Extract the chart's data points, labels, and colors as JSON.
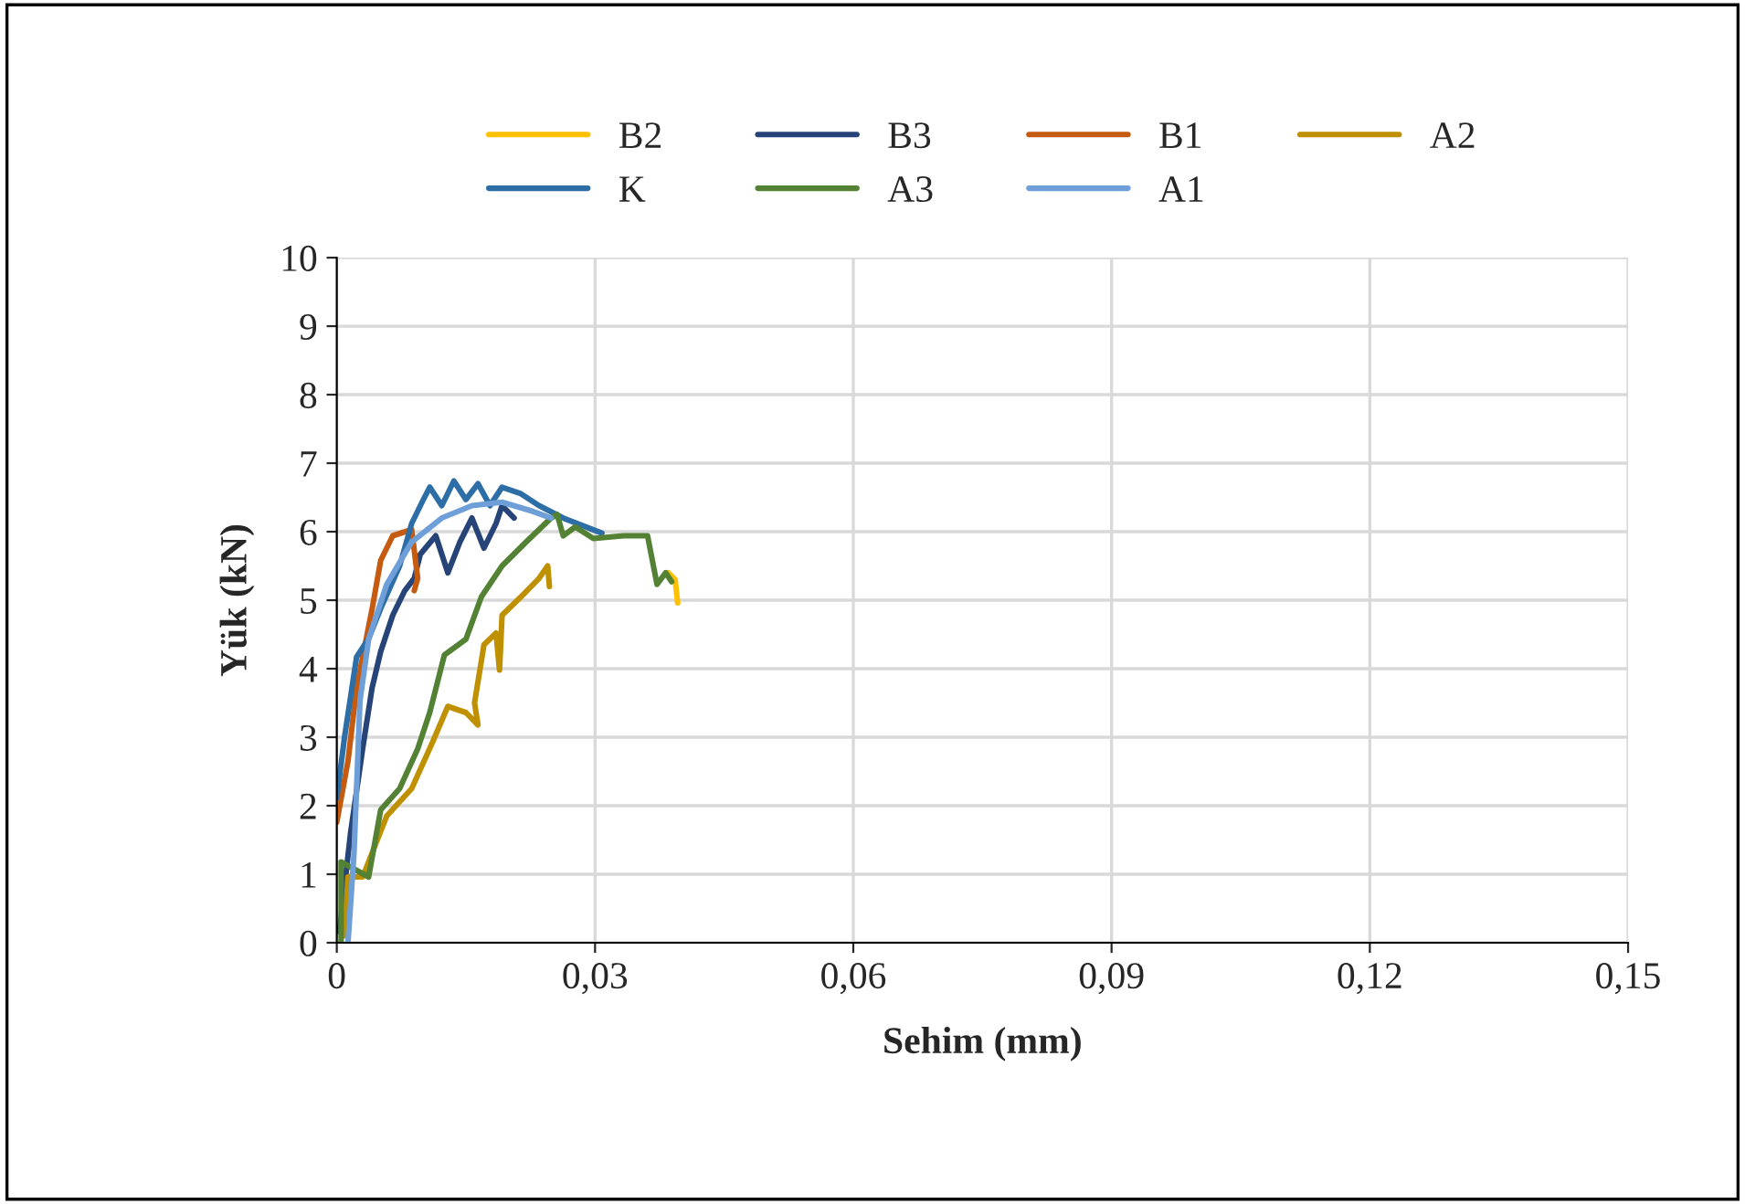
{
  "chart_data": {
    "type": "line",
    "xlabel": "Sehim (mm)",
    "ylabel": "Yük (kN)",
    "xlim": [
      0,
      0.15
    ],
    "ylim": [
      0,
      10
    ],
    "xticks": [
      0,
      {
        "value": 0.03,
        "label": "0,03"
      },
      {
        "value": 0.06,
        "label": "0,06"
      },
      {
        "value": 0.09,
        "label": "0,09"
      },
      {
        "value": 0.12,
        "label": "0,12"
      },
      {
        "value": 0.15,
        "label": "0,15"
      }
    ],
    "yticks": [
      0,
      1,
      2,
      3,
      4,
      5,
      6,
      7,
      8,
      9,
      10
    ],
    "grid": true,
    "legend": "top",
    "marker": "none",
    "line_style": "solid",
    "series": [
      {
        "name": "B2",
        "color": "#ffc000",
        "x": [
          0.0385,
          0.0393,
          0.0396
        ],
        "values": [
          5.4,
          5.3,
          4.96
        ]
      },
      {
        "name": "B3",
        "color": "#264478",
        "x": [
          0.0003,
          0.0016,
          0.003,
          0.0041,
          0.0051,
          0.0065,
          0.0079,
          0.009,
          0.0097,
          0.0115,
          0.0129,
          0.0143,
          0.0157,
          0.0171,
          0.0185,
          0.0192,
          0.0206
        ],
        "values": [
          0.16,
          1.6,
          2.83,
          3.72,
          4.25,
          4.78,
          5.14,
          5.32,
          5.67,
          5.94,
          5.4,
          5.85,
          6.2,
          5.76,
          6.12,
          6.38,
          6.2
        ]
      },
      {
        "name": "B1",
        "color": "#c55a11",
        "x": [
          0.0,
          0.0013,
          0.0023,
          0.0041,
          0.0051,
          0.0065,
          0.0087,
          0.0094,
          0.009
        ],
        "values": [
          1.76,
          2.65,
          3.72,
          4.87,
          5.58,
          5.94,
          6.03,
          5.32,
          5.14
        ]
      },
      {
        "name": "A2",
        "color": "#bf9000",
        "x": [
          0.0009,
          0.0013,
          0.003,
          0.0058,
          0.0087,
          0.0111,
          0.0129,
          0.015,
          0.0164,
          0.016,
          0.0171,
          0.0185,
          0.0189,
          0.0192,
          0.0214,
          0.0235,
          0.0245,
          0.0247
        ],
        "values": [
          0.1,
          0.96,
          0.96,
          1.85,
          2.25,
          2.92,
          3.45,
          3.36,
          3.18,
          3.5,
          4.35,
          4.52,
          3.98,
          4.78,
          5.05,
          5.32,
          5.5,
          5.2
        ]
      },
      {
        "name": "K",
        "color": "#2e6ea6",
        "x": [
          0.0,
          0.0009,
          0.0023,
          0.0037,
          0.0051,
          0.0073,
          0.0087,
          0.0101,
          0.0108,
          0.0122,
          0.0136,
          0.015,
          0.0164,
          0.0178,
          0.0192,
          0.0213,
          0.0235,
          0.0263,
          0.0308
        ],
        "values": [
          2.12,
          3.0,
          4.17,
          4.44,
          4.88,
          5.5,
          6.12,
          6.48,
          6.65,
          6.38,
          6.74,
          6.47,
          6.7,
          6.38,
          6.65,
          6.56,
          6.38,
          6.2,
          5.98
        ]
      },
      {
        "name": "A3",
        "color": "#548235",
        "x": [
          0.0005,
          0.0005,
          0.0037,
          0.0051,
          0.0073,
          0.0094,
          0.0108,
          0.0125,
          0.015,
          0.0168,
          0.0192,
          0.022,
          0.0249,
          0.0256,
          0.0263,
          0.0277,
          0.0298,
          0.0333,
          0.0361,
          0.0372,
          0.0382,
          0.0389
        ],
        "values": [
          0.0,
          1.18,
          0.96,
          1.94,
          2.25,
          2.83,
          3.36,
          4.2,
          4.43,
          5.05,
          5.5,
          5.85,
          6.2,
          6.25,
          5.94,
          6.07,
          5.9,
          5.94,
          5.94,
          5.23,
          5.4,
          5.27
        ]
      },
      {
        "name": "A1",
        "color": "#6f9fd8",
        "x": [
          0.0013,
          0.002,
          0.0027,
          0.0037,
          0.0058,
          0.0087,
          0.0122,
          0.0157,
          0.0192,
          0.0227,
          0.0249
        ],
        "values": [
          0.0,
          1.3,
          3.54,
          4.43,
          5.23,
          5.85,
          6.2,
          6.38,
          6.43,
          6.3,
          6.2
        ]
      }
    ]
  }
}
